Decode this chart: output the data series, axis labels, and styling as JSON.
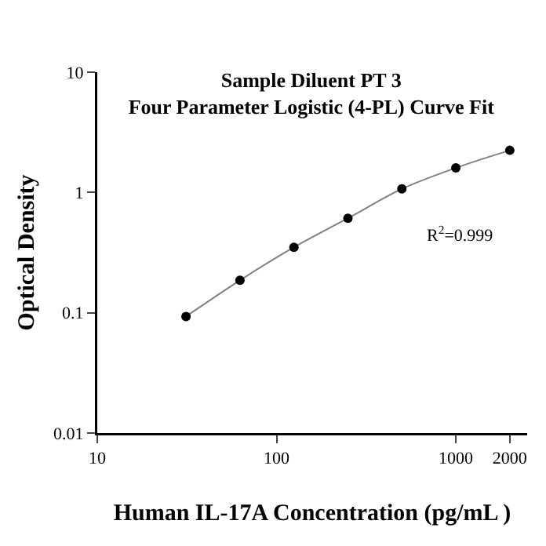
{
  "chart_data": {
    "type": "scatter",
    "title": "Sample Diluent PT 3\nFour Parameter Logistic (4-PL) Curve Fit",
    "xlabel": "Human IL-17A Concentration (pg/mL )",
    "ylabel": "Optical Density",
    "x": [
      31.25,
      62.5,
      125,
      250,
      500,
      1000,
      2000
    ],
    "series": [
      {
        "color": "#000000",
        "marker": "circle",
        "values": [
          0.093,
          0.186,
          0.35,
          0.61,
          1.07,
          1.6,
          2.24
        ]
      },
      {
        "type": "line",
        "color": "#808080",
        "marker": "none",
        "values": [
          0.093,
          0.186,
          0.35,
          0.61,
          1.07,
          1.6,
          2.24
        ]
      }
    ],
    "log": "xy",
    "xlim": [
      10,
      2500
    ],
    "ylim": [
      0.01,
      10
    ],
    "xticks": [
      10,
      100,
      1000,
      2000
    ],
    "yticks": [
      0.01,
      0.1,
      1,
      10
    ],
    "grid": false,
    "annotations": [
      "R$^{2}$=0.999"
    ]
  }
}
